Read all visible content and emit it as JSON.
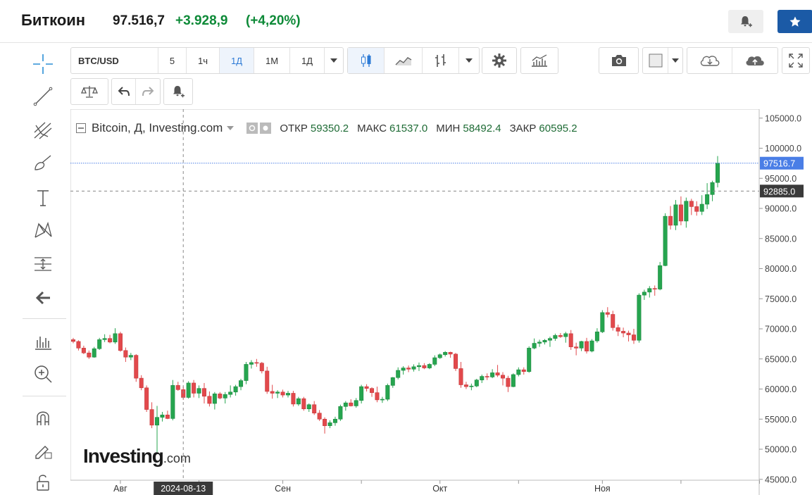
{
  "header": {
    "asset_name": "Биткоин",
    "price": "97.516,7",
    "change": "+3.928,9",
    "change_pct": "(+4,20%)"
  },
  "toolbar": {
    "symbol": "BTC/USD",
    "intervals": [
      "5",
      "1ч",
      "1Д",
      "1М",
      "1Д"
    ],
    "active_interval": "1Д"
  },
  "legend": {
    "title": "Bitcoin, Д, Investing.com",
    "open_label": "ОТКР",
    "open": "59350.2",
    "high_label": "МАКС",
    "high": "61537.0",
    "low_label": "МИН",
    "low": "58492.4",
    "close_label": "ЗАКР",
    "close": "60595.2"
  },
  "logo": {
    "name": "Investing",
    "suffix": ".com"
  },
  "colors": {
    "up": "#26a54f",
    "down": "#e2494c",
    "last_price_tag": "#4a7ee6",
    "crosshair_tag": "#3a3a3a",
    "accent": "#1b5aa6"
  },
  "chart_data": {
    "type": "candlestick",
    "y_axis": {
      "ticks": [
        "105000.0",
        "100000.0",
        "95000.0",
        "90000.0",
        "85000.0",
        "80000.0",
        "75000.0",
        "70000.0",
        "65000.0",
        "60000.0",
        "55000.0",
        "50000.0",
        "45000.0"
      ],
      "range": [
        45000,
        105000
      ]
    },
    "x_axis": {
      "labels": [
        {
          "text": "Авг",
          "date": "2024-08-01"
        },
        {
          "text": "Сен",
          "date": "2024-09-01"
        },
        {
          "text": "Окт",
          "date": "2024-10-01"
        },
        {
          "text": "Ноя",
          "date": "2024-11-01"
        }
      ],
      "crosshair_date": "2024-08-13"
    },
    "last_price": "97516.7",
    "crosshair_price": "92885.0",
    "grid": false,
    "candles": [
      [
        68200,
        68500,
        67600,
        67900
      ],
      [
        67900,
        68100,
        66400,
        66800
      ],
      [
        66800,
        67200,
        65800,
        66000
      ],
      [
        66000,
        66400,
        65000,
        65300
      ],
      [
        65300,
        67000,
        65200,
        66700
      ],
      [
        66700,
        68500,
        66500,
        68200
      ],
      [
        68200,
        69100,
        67800,
        68400
      ],
      [
        68400,
        69000,
        67600,
        67800
      ],
      [
        67800,
        70100,
        67500,
        69200
      ],
      [
        69200,
        69500,
        66200,
        66400
      ],
      [
        66400,
        66900,
        64500,
        65300
      ],
      [
        65300,
        66000,
        64800,
        65600
      ],
      [
        65600,
        65800,
        61200,
        61800
      ],
      [
        61800,
        62300,
        59800,
        60200
      ],
      [
        60200,
        60600,
        56200,
        56600
      ],
      [
        56600,
        57800,
        53500,
        54000
      ],
      [
        54000,
        57200,
        49500,
        55300
      ],
      [
        55300,
        56200,
        54600,
        55700
      ],
      [
        55700,
        56400,
        55000,
        55100
      ],
      [
        55100,
        61500,
        54800,
        60600
      ],
      [
        60600,
        61200,
        59700,
        59900
      ],
      [
        59900,
        60400,
        58200,
        58600
      ],
      [
        58600,
        61300,
        58400,
        61000
      ],
      [
        61000,
        61500,
        58600,
        59300
      ],
      [
        59300,
        60600,
        58500,
        60100
      ],
      [
        60100,
        61000,
        57600,
        58800
      ],
      [
        58800,
        59600,
        57100,
        57600
      ],
      [
        57600,
        59500,
        56600,
        59200
      ],
      [
        59200,
        59500,
        58300,
        58500
      ],
      [
        58500,
        59500,
        57600,
        59100
      ],
      [
        59100,
        60600,
        58600,
        59500
      ],
      [
        59500,
        60700,
        58900,
        60400
      ],
      [
        60400,
        61700,
        59800,
        61400
      ],
      [
        61400,
        64500,
        60800,
        64100
      ],
      [
        64100,
        64800,
        63400,
        64400
      ],
      [
        64400,
        65000,
        63700,
        64300
      ],
      [
        64300,
        64500,
        62600,
        63000
      ],
      [
        63000,
        63700,
        59200,
        59600
      ],
      [
        59600,
        60700,
        58400,
        59300
      ],
      [
        59300,
        59800,
        58500,
        59500
      ],
      [
        59500,
        59900,
        58600,
        59000
      ],
      [
        59000,
        59700,
        58600,
        59300
      ],
      [
        59300,
        59700,
        57100,
        57500
      ],
      [
        57500,
        58700,
        57200,
        58400
      ],
      [
        58400,
        58700,
        56400,
        56700
      ],
      [
        56700,
        57600,
        56200,
        57400
      ],
      [
        57400,
        58000,
        55700,
        56000
      ],
      [
        56000,
        56500,
        54700,
        55000
      ],
      [
        55000,
        55300,
        52600,
        53900
      ],
      [
        53900,
        54800,
        53500,
        54400
      ],
      [
        54400,
        55400,
        53900,
        55000
      ],
      [
        55000,
        57400,
        54700,
        57100
      ],
      [
        57100,
        58000,
        56400,
        57700
      ],
      [
        57700,
        58300,
        57100,
        57200
      ],
      [
        57200,
        58500,
        56900,
        58100
      ],
      [
        58100,
        60700,
        57600,
        60400
      ],
      [
        60400,
        60800,
        59600,
        60100
      ],
      [
        60100,
        60300,
        58700,
        59400
      ],
      [
        59400,
        60400,
        57800,
        58200
      ],
      [
        58200,
        58700,
        57700,
        58300
      ],
      [
        58300,
        60900,
        58000,
        60600
      ],
      [
        60600,
        62000,
        60200,
        61900
      ],
      [
        61900,
        63600,
        61600,
        63100
      ],
      [
        63100,
        63800,
        62400,
        63500
      ],
      [
        63500,
        63900,
        62800,
        63300
      ],
      [
        63300,
        64100,
        62900,
        63700
      ],
      [
        63700,
        64400,
        63000,
        63900
      ],
      [
        63900,
        64300,
        63300,
        63500
      ],
      [
        63500,
        64300,
        63300,
        64100
      ],
      [
        64100,
        65600,
        63800,
        65200
      ],
      [
        65200,
        65900,
        65000,
        65700
      ],
      [
        65700,
        66300,
        65400,
        66100
      ],
      [
        66100,
        66200,
        65200,
        65800
      ],
      [
        65800,
        66000,
        63000,
        63400
      ],
      [
        63400,
        64500,
        60200,
        60700
      ],
      [
        60700,
        61200,
        60000,
        60400
      ],
      [
        60400,
        60900,
        59800,
        60500
      ],
      [
        60500,
        61700,
        60300,
        61500
      ],
      [
        61500,
        62400,
        61000,
        62100
      ],
      [
        62100,
        62600,
        61500,
        62000
      ],
      [
        62000,
        63300,
        61800,
        62700
      ],
      [
        62700,
        64000,
        62000,
        62300
      ],
      [
        62300,
        62800,
        60600,
        61800
      ],
      [
        61800,
        62200,
        59500,
        60400
      ],
      [
        60400,
        62600,
        60300,
        62400
      ],
      [
        62400,
        63600,
        62100,
        63200
      ],
      [
        63200,
        63600,
        62400,
        62900
      ],
      [
        62900,
        67100,
        62700,
        66800
      ],
      [
        66800,
        68400,
        66600,
        67600
      ],
      [
        67600,
        68200,
        67000,
        67800
      ],
      [
        67800,
        68300,
        67400,
        68100
      ],
      [
        68100,
        68700,
        67000,
        68400
      ],
      [
        68400,
        69200,
        68000,
        68900
      ],
      [
        68900,
        69300,
        68500,
        68700
      ],
      [
        68700,
        69500,
        67700,
        69200
      ],
      [
        69200,
        69800,
        66500,
        67000
      ],
      [
        67000,
        67700,
        65600,
        66800
      ],
      [
        66800,
        68000,
        66300,
        67900
      ],
      [
        67900,
        68500,
        65900,
        66300
      ],
      [
        66300,
        68300,
        66100,
        68000
      ],
      [
        68000,
        70100,
        67700,
        69500
      ],
      [
        69500,
        73100,
        69300,
        72700
      ],
      [
        72700,
        73600,
        71900,
        72400
      ],
      [
        72400,
        73000,
        69700,
        70200
      ],
      [
        70200,
        70700,
        68800,
        69600
      ],
      [
        69600,
        70200,
        68600,
        69300
      ],
      [
        69300,
        69700,
        67900,
        69000
      ],
      [
        69000,
        70000,
        67500,
        68100
      ],
      [
        68100,
        75900,
        67700,
        75600
      ],
      [
        75600,
        76500,
        74800,
        76100
      ],
      [
        76100,
        77100,
        75200,
        76700
      ],
      [
        76700,
        77200,
        75500,
        76600
      ],
      [
        76600,
        81100,
        76400,
        80500
      ],
      [
        80500,
        89200,
        80400,
        88700
      ],
      [
        88700,
        90400,
        86500,
        87200
      ],
      [
        87200,
        91400,
        86400,
        90600
      ],
      [
        90600,
        92000,
        87200,
        87900
      ],
      [
        87900,
        91800,
        86800,
        91200
      ],
      [
        91200,
        91600,
        88900,
        90300
      ],
      [
        90300,
        91200,
        88800,
        89500
      ],
      [
        89500,
        92200,
        88900,
        90700
      ],
      [
        90700,
        94200,
        89900,
        92300
      ],
      [
        92300,
        94600,
        91200,
        94300
      ],
      [
        94300,
        98700,
        93500,
        97516.7
      ]
    ]
  }
}
